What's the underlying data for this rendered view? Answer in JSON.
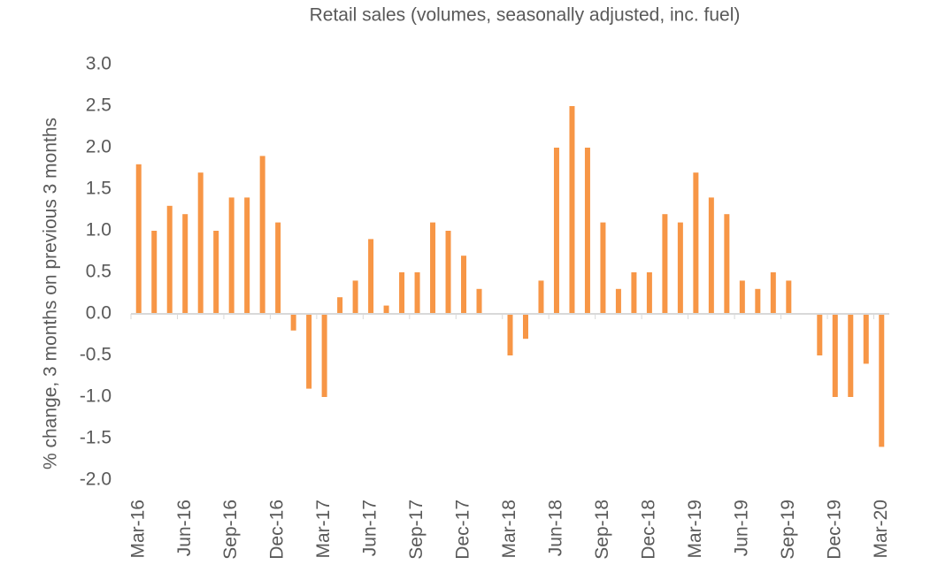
{
  "chart_data": {
    "type": "bar",
    "title": "Retail sales (volumes, seasonally adjusted, inc. fuel)",
    "y_label": "% change, 3 months on previous 3 months",
    "categories": [
      "Mar-16",
      null,
      null,
      "Jun-16",
      null,
      null,
      "Sep-16",
      null,
      null,
      "Dec-16",
      null,
      null,
      "Mar-17",
      null,
      null,
      "Jun-17",
      null,
      null,
      "Sep-17",
      null,
      null,
      "Dec-17",
      null,
      null,
      "Mar-18",
      null,
      null,
      "Jun-18",
      null,
      null,
      "Sep-18",
      null,
      null,
      "Dec-18",
      null,
      null,
      "Mar-19",
      null,
      null,
      "Jun-19",
      null,
      null,
      "Sep-19",
      null,
      null,
      "Dec-19",
      null,
      null,
      "Mar-20"
    ],
    "values": [
      1.8,
      1.0,
      1.3,
      1.2,
      1.7,
      1.0,
      1.4,
      1.4,
      1.9,
      1.1,
      -0.2,
      -0.9,
      -1.0,
      0.2,
      0.4,
      0.9,
      0.1,
      0.5,
      0.5,
      1.1,
      1.0,
      0.7,
      0.3,
      0.0,
      -0.5,
      -0.3,
      0.4,
      2.0,
      2.5,
      2.0,
      1.1,
      0.3,
      0.5,
      0.5,
      1.2,
      1.1,
      1.7,
      1.4,
      1.2,
      0.4,
      0.3,
      0.5,
      0.4,
      0.0,
      -0.5,
      -1.0,
      -1.0,
      -0.6,
      -1.6
    ],
    "color": "#f79646",
    "ylim": [
      -2.0,
      3.0
    ],
    "yticks": [
      {
        "value": -2.0,
        "label": "-2.0"
      },
      -1.5,
      {
        "value": -1.0,
        "label": "-1.0"
      },
      -0.5,
      {
        "value": 0.0,
        "label": "0.0"
      },
      0.5,
      {
        "value": 1.0,
        "label": "1.0"
      },
      1.5,
      {
        "value": 2.0,
        "label": "2.0"
      },
      2.5,
      {
        "value": 3.0,
        "label": "3.0"
      }
    ],
    "grid": false
  }
}
